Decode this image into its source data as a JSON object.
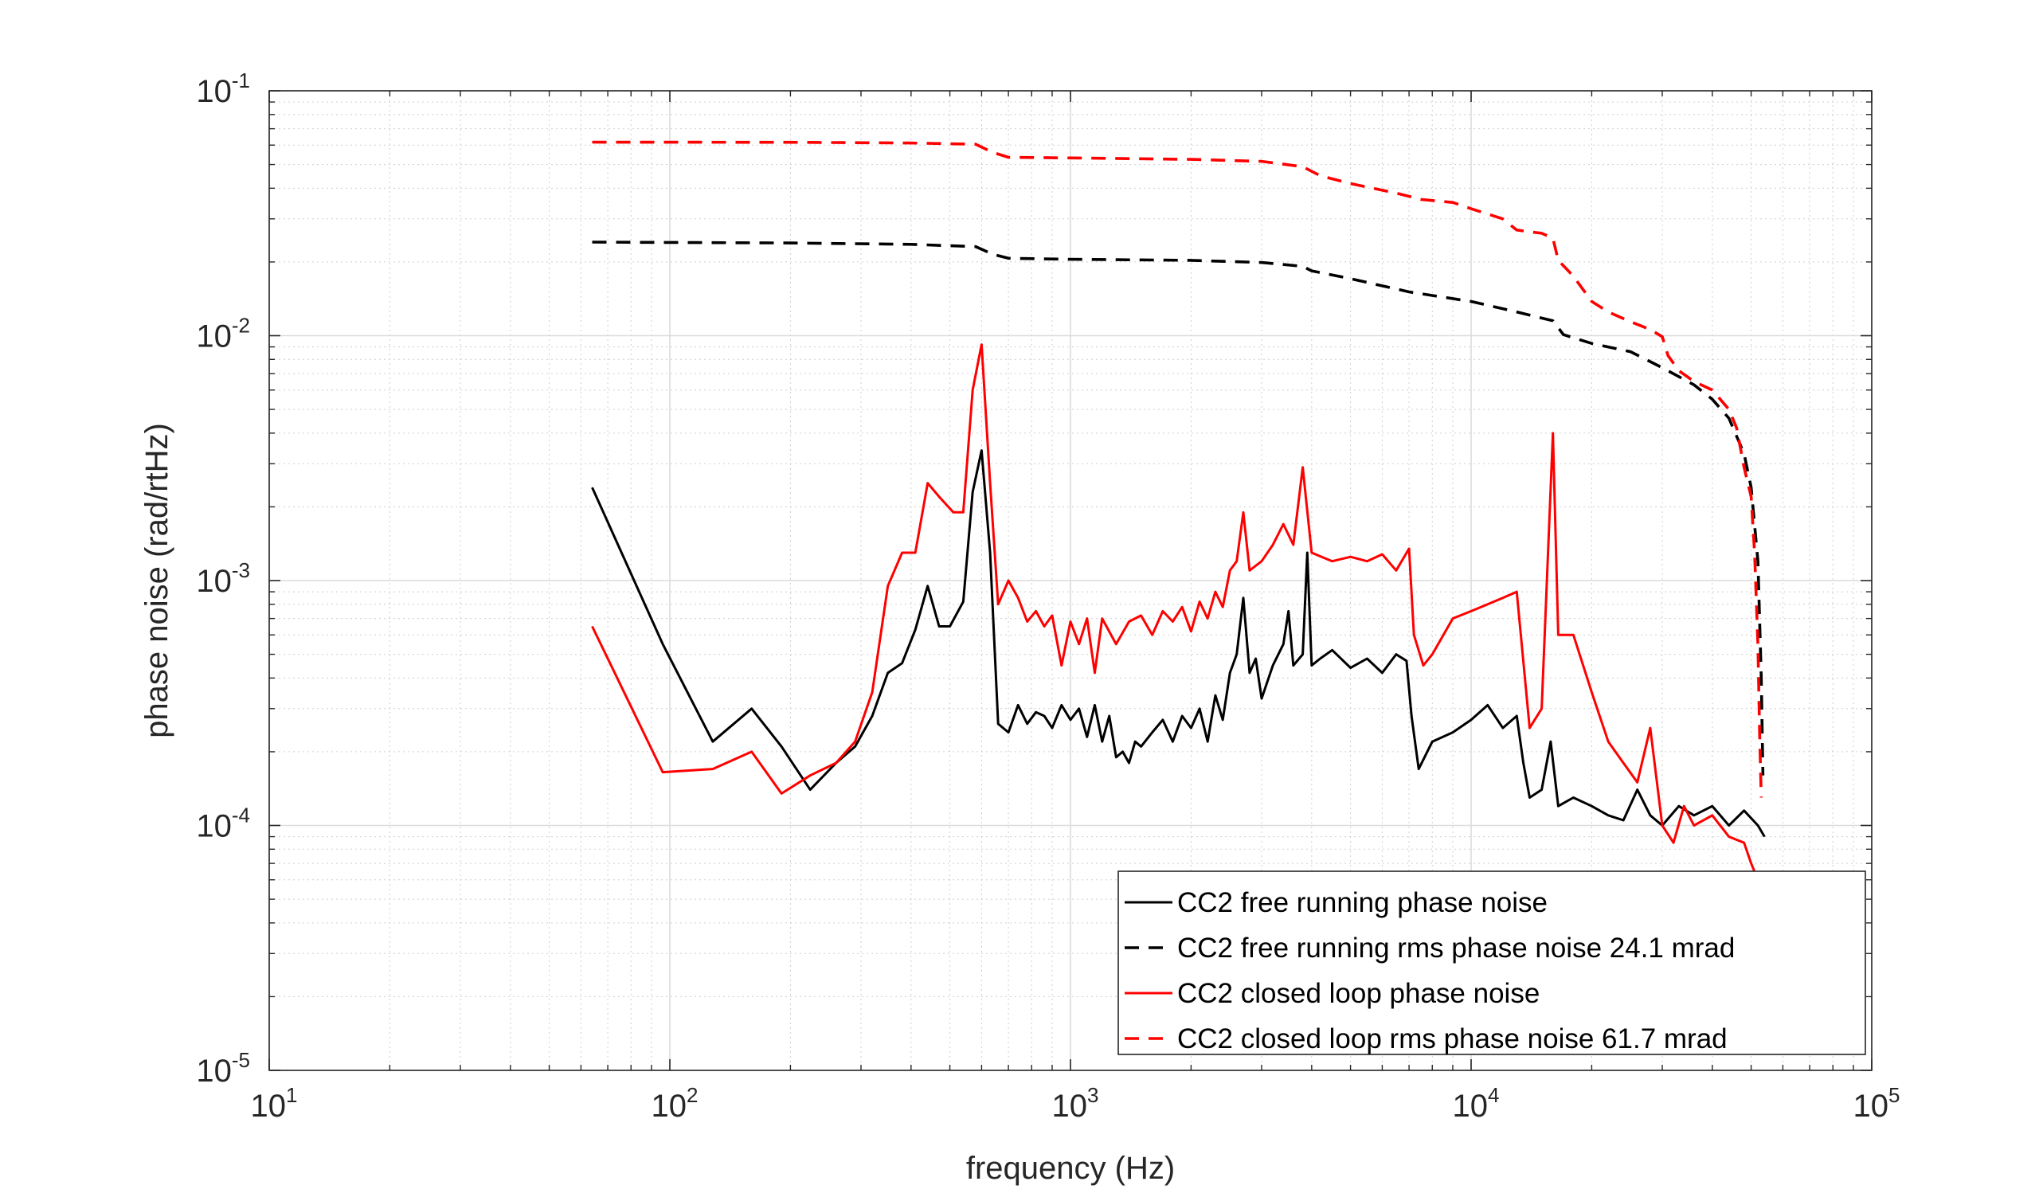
{
  "chart_data": {
    "type": "line",
    "xlabel": "frequency (Hz)",
    "ylabel": "phase noise (rad/rtHz)",
    "xscale": "log",
    "yscale": "log",
    "xlim": [
      10,
      100000
    ],
    "ylim": [
      1e-05,
      0.1
    ],
    "x_ticks": [
      {
        "base": "10",
        "exp": "1",
        "value": 10
      },
      {
        "base": "10",
        "exp": "2",
        "value": 100
      },
      {
        "base": "10",
        "exp": "3",
        "value": 1000
      },
      {
        "base": "10",
        "exp": "4",
        "value": 10000
      },
      {
        "base": "10",
        "exp": "5",
        "value": 100000
      }
    ],
    "y_ticks": [
      {
        "base": "10",
        "exp": "-5",
        "value": 1e-05
      },
      {
        "base": "10",
        "exp": "-4",
        "value": 0.0001
      },
      {
        "base": "10",
        "exp": "-3",
        "value": 0.001
      },
      {
        "base": "10",
        "exp": "-2",
        "value": 0.01
      },
      {
        "base": "10",
        "exp": "-1",
        "value": 0.1
      }
    ],
    "grid": true,
    "minor_grid": true,
    "legend_position": "bottom-right",
    "series": [
      {
        "name": "CC2 free running phase noise",
        "color": "#000000",
        "style": "solid",
        "points": [
          [
            64,
            0.0024
          ],
          [
            96,
            0.00055
          ],
          [
            128,
            0.00022
          ],
          [
            160,
            0.0003
          ],
          [
            190,
            0.00021
          ],
          [
            224,
            0.00014
          ],
          [
            260,
            0.00018
          ],
          [
            290,
            0.00021
          ],
          [
            320,
            0.00028
          ],
          [
            350,
            0.00042
          ],
          [
            380,
            0.00046
          ],
          [
            410,
            0.00063
          ],
          [
            440,
            0.00095
          ],
          [
            470,
            0.00065
          ],
          [
            500,
            0.00065
          ],
          [
            540,
            0.00082
          ],
          [
            570,
            0.0023
          ],
          [
            600,
            0.0034
          ],
          [
            630,
            0.0013
          ],
          [
            660,
            0.00026
          ],
          [
            700,
            0.00024
          ],
          [
            740,
            0.00031
          ],
          [
            780,
            0.00026
          ],
          [
            820,
            0.00029
          ],
          [
            860,
            0.00028
          ],
          [
            900,
            0.00025
          ],
          [
            950,
            0.00031
          ],
          [
            1000,
            0.00027
          ],
          [
            1050,
            0.0003
          ],
          [
            1100,
            0.00023
          ],
          [
            1150,
            0.00031
          ],
          [
            1200,
            0.00022
          ],
          [
            1250,
            0.00028
          ],
          [
            1300,
            0.00019
          ],
          [
            1350,
            0.0002
          ],
          [
            1400,
            0.00018
          ],
          [
            1450,
            0.00022
          ],
          [
            1500,
            0.00021
          ],
          [
            1600,
            0.00024
          ],
          [
            1700,
            0.00027
          ],
          [
            1800,
            0.00022
          ],
          [
            1900,
            0.00028
          ],
          [
            2000,
            0.00025
          ],
          [
            2100,
            0.0003
          ],
          [
            2200,
            0.00022
          ],
          [
            2300,
            0.00034
          ],
          [
            2400,
            0.00027
          ],
          [
            2500,
            0.00042
          ],
          [
            2600,
            0.0005
          ],
          [
            2700,
            0.00085
          ],
          [
            2800,
            0.00042
          ],
          [
            2900,
            0.00048
          ],
          [
            3000,
            0.00033
          ],
          [
            3200,
            0.00045
          ],
          [
            3400,
            0.00055
          ],
          [
            3500,
            0.00075
          ],
          [
            3600,
            0.00045
          ],
          [
            3800,
            0.0005
          ],
          [
            3900,
            0.0013
          ],
          [
            4000,
            0.00045
          ],
          [
            4200,
            0.00048
          ],
          [
            4500,
            0.00052
          ],
          [
            5000,
            0.00044
          ],
          [
            5500,
            0.00048
          ],
          [
            6000,
            0.00042
          ],
          [
            6500,
            0.0005
          ],
          [
            6900,
            0.00047
          ],
          [
            7100,
            0.00028
          ],
          [
            7400,
            0.00017
          ],
          [
            8000,
            0.00022
          ],
          [
            9000,
            0.00024
          ],
          [
            10000,
            0.00027
          ],
          [
            11000,
            0.00031
          ],
          [
            12000,
            0.00025
          ],
          [
            13000,
            0.00028
          ],
          [
            13500,
            0.00018
          ],
          [
            14000,
            0.00013
          ],
          [
            15000,
            0.00014
          ],
          [
            15800,
            0.00022
          ],
          [
            16500,
            0.00012
          ],
          [
            18000,
            0.00013
          ],
          [
            20000,
            0.00012
          ],
          [
            22000,
            0.00011
          ],
          [
            24000,
            0.000105
          ],
          [
            26000,
            0.00014
          ],
          [
            28000,
            0.00011
          ],
          [
            30000,
            0.0001
          ],
          [
            33000,
            0.00012
          ],
          [
            36000,
            0.00011
          ],
          [
            40000,
            0.00012
          ],
          [
            44000,
            0.0001
          ],
          [
            48000,
            0.000115
          ],
          [
            52000,
            0.0001
          ],
          [
            54000,
            9e-05
          ]
        ]
      },
      {
        "name": "CC2 free running rms phase noise 24.1 mrad",
        "color": "#000000",
        "style": "dashed",
        "points": [
          [
            64,
            0.0241
          ],
          [
            200,
            0.0239
          ],
          [
            400,
            0.0236
          ],
          [
            580,
            0.0231
          ],
          [
            640,
            0.0215
          ],
          [
            700,
            0.0207
          ],
          [
            1000,
            0.0205
          ],
          [
            2000,
            0.0203
          ],
          [
            3000,
            0.0199
          ],
          [
            3800,
            0.0192
          ],
          [
            4000,
            0.0184
          ],
          [
            5000,
            0.0171
          ],
          [
            7000,
            0.0151
          ],
          [
            10000,
            0.0138
          ],
          [
            13000,
            0.0125
          ],
          [
            16000,
            0.0115
          ],
          [
            17000,
            0.0101
          ],
          [
            20000,
            0.0093
          ],
          [
            25000,
            0.0086
          ],
          [
            30000,
            0.0074
          ],
          [
            36000,
            0.0063
          ],
          [
            40000,
            0.0055
          ],
          [
            44000,
            0.0046
          ],
          [
            48000,
            0.0033
          ],
          [
            50000,
            0.0024
          ],
          [
            52000,
            0.0012
          ],
          [
            53000,
            0.0004
          ],
          [
            53500,
            0.00016
          ]
        ]
      },
      {
        "name": "CC2 closed loop phase noise",
        "color": "#ff0000",
        "style": "solid",
        "points": [
          [
            64,
            0.00065
          ],
          [
            96,
            0.000165
          ],
          [
            128,
            0.00017
          ],
          [
            160,
            0.0002
          ],
          [
            190,
            0.000135
          ],
          [
            224,
            0.00016
          ],
          [
            260,
            0.00018
          ],
          [
            290,
            0.00022
          ],
          [
            320,
            0.00035
          ],
          [
            350,
            0.00095
          ],
          [
            380,
            0.0013
          ],
          [
            410,
            0.0013
          ],
          [
            440,
            0.0025
          ],
          [
            470,
            0.0022
          ],
          [
            510,
            0.0019
          ],
          [
            540,
            0.0019
          ],
          [
            570,
            0.006
          ],
          [
            600,
            0.0092
          ],
          [
            630,
            0.0025
          ],
          [
            660,
            0.0008
          ],
          [
            700,
            0.001
          ],
          [
            740,
            0.00085
          ],
          [
            780,
            0.00068
          ],
          [
            820,
            0.00075
          ],
          [
            860,
            0.00065
          ],
          [
            900,
            0.00072
          ],
          [
            950,
            0.00045
          ],
          [
            1000,
            0.00068
          ],
          [
            1050,
            0.00055
          ],
          [
            1100,
            0.0007
          ],
          [
            1150,
            0.00042
          ],
          [
            1200,
            0.0007
          ],
          [
            1300,
            0.00055
          ],
          [
            1400,
            0.00068
          ],
          [
            1500,
            0.00072
          ],
          [
            1600,
            0.0006
          ],
          [
            1700,
            0.00075
          ],
          [
            1800,
            0.00068
          ],
          [
            1900,
            0.00078
          ],
          [
            2000,
            0.00062
          ],
          [
            2100,
            0.00082
          ],
          [
            2200,
            0.0007
          ],
          [
            2300,
            0.0009
          ],
          [
            2400,
            0.00078
          ],
          [
            2500,
            0.0011
          ],
          [
            2600,
            0.0012
          ],
          [
            2700,
            0.0019
          ],
          [
            2800,
            0.0011
          ],
          [
            3000,
            0.0012
          ],
          [
            3200,
            0.0014
          ],
          [
            3400,
            0.0017
          ],
          [
            3600,
            0.0014
          ],
          [
            3800,
            0.0029
          ],
          [
            4000,
            0.0013
          ],
          [
            4500,
            0.0012
          ],
          [
            5000,
            0.00125
          ],
          [
            5500,
            0.0012
          ],
          [
            6000,
            0.00128
          ],
          [
            6500,
            0.0011
          ],
          [
            7000,
            0.00135
          ],
          [
            7200,
            0.0006
          ],
          [
            7600,
            0.00045
          ],
          [
            8000,
            0.0005
          ],
          [
            9000,
            0.0007
          ],
          [
            10000,
            0.00075
          ],
          [
            11000,
            0.0008
          ],
          [
            12000,
            0.00085
          ],
          [
            13000,
            0.0009
          ],
          [
            14000,
            0.00025
          ],
          [
            15000,
            0.0003
          ],
          [
            16000,
            0.004
          ],
          [
            16500,
            0.0006
          ],
          [
            18000,
            0.0006
          ],
          [
            20000,
            0.00035
          ],
          [
            22000,
            0.00022
          ],
          [
            24000,
            0.00018
          ],
          [
            26000,
            0.00015
          ],
          [
            28000,
            0.00025
          ],
          [
            30000,
            0.0001
          ],
          [
            32000,
            8.5e-05
          ],
          [
            34000,
            0.00012
          ],
          [
            36000,
            0.0001
          ],
          [
            40000,
            0.00011
          ],
          [
            44000,
            9e-05
          ],
          [
            48000,
            8.5e-05
          ],
          [
            50000,
            7e-05
          ],
          [
            52000,
            6e-05
          ]
        ]
      },
      {
        "name": "CC2 closed loop rms phase noise 61.7 mrad",
        "color": "#ff0000",
        "style": "dashed",
        "points": [
          [
            64,
            0.0617
          ],
          [
            200,
            0.0616
          ],
          [
            400,
            0.0612
          ],
          [
            580,
            0.0605
          ],
          [
            640,
            0.056
          ],
          [
            700,
            0.0535
          ],
          [
            1000,
            0.0532
          ],
          [
            2000,
            0.0525
          ],
          [
            3000,
            0.0515
          ],
          [
            3800,
            0.049
          ],
          [
            4200,
            0.045
          ],
          [
            5000,
            0.0418
          ],
          [
            6500,
            0.0382
          ],
          [
            7500,
            0.036
          ],
          [
            9000,
            0.035
          ],
          [
            10000,
            0.033
          ],
          [
            12000,
            0.03
          ],
          [
            13000,
            0.027
          ],
          [
            15000,
            0.0262
          ],
          [
            16000,
            0.025
          ],
          [
            16500,
            0.0203
          ],
          [
            18000,
            0.0175
          ],
          [
            20000,
            0.0138
          ],
          [
            22000,
            0.0125
          ],
          [
            25000,
            0.0114
          ],
          [
            28000,
            0.0106
          ],
          [
            30000,
            0.0099
          ],
          [
            31000,
            0.0083
          ],
          [
            33000,
            0.0072
          ],
          [
            36000,
            0.0065
          ],
          [
            40000,
            0.006
          ],
          [
            44000,
            0.005
          ],
          [
            46000,
            0.0042
          ],
          [
            48000,
            0.0029
          ],
          [
            50000,
            0.0022
          ],
          [
            51000,
            0.0013
          ],
          [
            52000,
            0.00055
          ],
          [
            52500,
            0.00024
          ],
          [
            53000,
            0.00013
          ]
        ]
      }
    ]
  }
}
